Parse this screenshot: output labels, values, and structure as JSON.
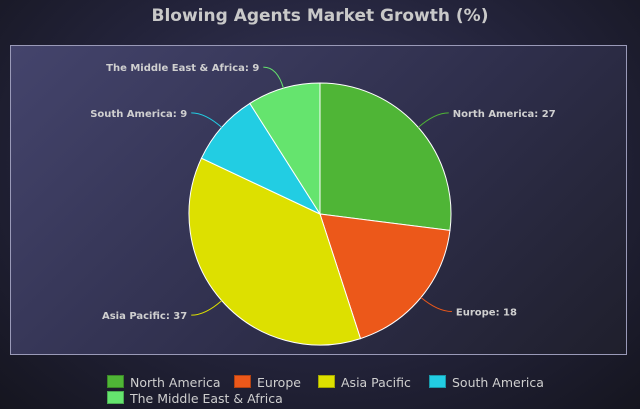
{
  "chart_data": {
    "type": "pie",
    "title": "Blowing Agents Market Growth (%)",
    "categories": [
      "North America",
      "Europe",
      "Asia Pacific",
      "South America",
      "The Middle East & Africa"
    ],
    "values": [
      27,
      18,
      37,
      9,
      9
    ],
    "slice_labels": [
      "North America: 27",
      "Europe: 18",
      "Asia Pacific: 37",
      "South America: 9",
      "The Middle East & Africa: 9"
    ],
    "colors": [
      "#4fb536",
      "#ec581a",
      "#dde000",
      "#22cde3",
      "#65e46e"
    ],
    "legend_position": "bottom",
    "start_angle_deg": 90,
    "direction": "clockwise"
  }
}
